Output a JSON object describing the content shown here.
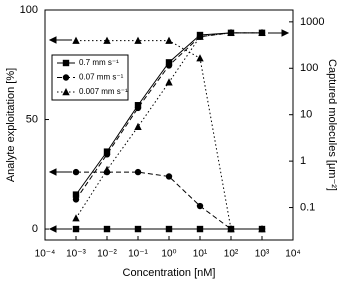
{
  "chart_data": {
    "type": "line",
    "x_label": "Concentration [nM]",
    "y_label": "Analyte exploitation [%]",
    "y2_label": "Captured molecules [μm⁻²]",
    "x_log": true,
    "y2_log": true,
    "x": [
      0.001,
      0.01,
      0.1,
      1,
      10,
      100,
      1000
    ],
    "xlim": [
      0.0001,
      10000
    ],
    "xticks": [
      {
        "value": 0.0001,
        "label": "10⁻⁴"
      },
      {
        "value": 0.001,
        "label": "10⁻³"
      },
      {
        "value": 0.01,
        "label": "10⁻²"
      },
      {
        "value": 0.1,
        "label": "10⁻¹"
      },
      {
        "value": 1,
        "label": "10⁰"
      },
      {
        "value": 10,
        "label": "10¹"
      },
      {
        "value": 100,
        "label": "10²"
      },
      {
        "value": 1000,
        "label": "10³"
      },
      {
        "value": 10000,
        "label": "10⁴"
      }
    ],
    "ylim": [
      -5,
      100
    ],
    "yticks": [
      0,
      50,
      100
    ],
    "y2lim": [
      0.02,
      1800
    ],
    "y2ticks": [
      0.1,
      1,
      10,
      100,
      1000
    ],
    "color": "#000000",
    "series": [
      {
        "name": "0.7 mm s⁻¹",
        "marker": "square",
        "dash": "solid",
        "values": [
          0,
          0,
          0,
          0,
          0,
          0,
          0
        ],
        "captured": [
          0.19,
          1.6,
          16,
          134,
          520,
          580,
          580
        ]
      },
      {
        "name": "0.07 mm s⁻¹",
        "marker": "circle",
        "dash": "dashed",
        "values": [
          26,
          26,
          26,
          24,
          10.5,
          0,
          0
        ],
        "captured": [
          0.15,
          1.4,
          14,
          115,
          480,
          580,
          580
        ]
      },
      {
        "name": "0.007 mm s⁻¹",
        "marker": "triangle",
        "dash": "dotted",
        "values": [
          86,
          86,
          86,
          86,
          78,
          0,
          0
        ],
        "captured": [
          0.059,
          0.65,
          5.5,
          50,
          480,
          580,
          580
        ]
      }
    ]
  }
}
